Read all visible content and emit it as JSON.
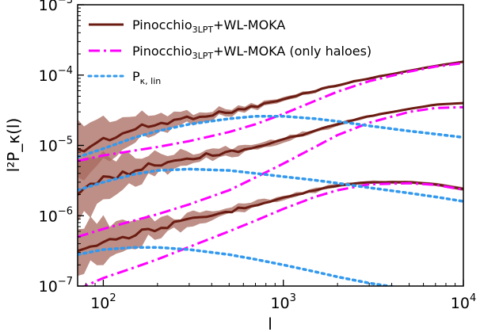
{
  "chart_data": {
    "type": "line",
    "xlabel": "l",
    "ylabel": "l²P_κ(l)",
    "xscale": "log",
    "yscale": "log",
    "xlim": [
      72,
      10000
    ],
    "ylim": [
      1e-07,
      0.001
    ],
    "grid": false,
    "legend_position": "top-left",
    "x_ticks": [
      {
        "base": "10",
        "exp": "2",
        "value": 100
      },
      {
        "base": "10",
        "exp": "3",
        "value": 1000
      },
      {
        "base": "10",
        "exp": "4",
        "value": 10000
      }
    ],
    "y_ticks": [
      {
        "base": "10",
        "exp": "−7",
        "value": 1e-07
      },
      {
        "base": "10",
        "exp": "−6",
        "value": 1e-06
      },
      {
        "base": "10",
        "exp": "−5",
        "value": 1e-05
      },
      {
        "base": "10",
        "exp": "−4",
        "value": 0.0001
      },
      {
        "base": "10",
        "exp": "−3",
        "value": 0.001
      }
    ],
    "legend": [
      {
        "main": "Pinocchio",
        "sub": "3LPT",
        "rest": "+WL-MOKA",
        "style": "solid",
        "color": "#6b1c12"
      },
      {
        "main": "Pinocchio",
        "sub": "3LPT",
        "rest": "+WL-MOKA (only haloes)",
        "style": "dashdot",
        "color": "#ff00ff"
      },
      {
        "main": "P",
        "sub": "κ, lin",
        "rest": "",
        "style": "dotted",
        "color": "#3399ee"
      }
    ],
    "colors": {
      "full": "#6b1c12",
      "band": "#a86a5e",
      "haloes": "#ff00ff",
      "linear": "#3399ee"
    },
    "series": [
      {
        "group": "full",
        "x": [
          72,
          100,
          150,
          200,
          300,
          500,
          700,
          1000,
          1500,
          2000,
          3000,
          5000,
          7000,
          10000
        ],
        "values": [
          8e-06,
          1.2e-05,
          1.7e-05,
          2e-05,
          2.5e-05,
          3e-05,
          3.6e-05,
          4.5e-05,
          6e-05,
          7.2e-05,
          9e-05,
          0.000115,
          0.000135,
          0.000155
        ],
        "band_lower": [
          3e-06,
          6e-06,
          1.1e-05,
          1.5e-05,
          2.1e-05,
          2.7e-05,
          3.3e-05,
          4.2e-05,
          5.7e-05,
          6.9e-05,
          8.7e-05,
          0.000112,
          0.000132,
          0.000152
        ],
        "band_upper": [
          2e-05,
          2.4e-05,
          2.6e-05,
          2.8e-05,
          3e-05,
          3.4e-05,
          3.9e-05,
          4.8e-05,
          6.3e-05,
          7.5e-05,
          9.3e-05,
          0.000118,
          0.000138,
          0.000158
        ]
      },
      {
        "group": "full",
        "x": [
          72,
          100,
          150,
          200,
          300,
          500,
          700,
          1000,
          1500,
          2000,
          3000,
          5000,
          7000,
          10000
        ],
        "values": [
          2.2e-06,
          3.2e-06,
          4.5e-06,
          5.5e-06,
          6.7e-06,
          8e-06,
          9.5e-06,
          1.2e-05,
          1.6e-05,
          2e-05,
          2.6e-05,
          3.3e-05,
          3.8e-05,
          4e-05
        ],
        "band_lower": [
          8e-07,
          1.6e-06,
          3e-06,
          4e-06,
          5.4e-06,
          7e-06,
          8.6e-06,
          1.1e-05,
          1.5e-05,
          1.9e-05,
          2.5e-05,
          3.2e-05,
          3.7e-05,
          3.9e-05
        ],
        "band_upper": [
          6e-06,
          7e-06,
          7.2e-06,
          7.5e-06,
          8.2e-06,
          9.2e-06,
          1.05e-05,
          1.3e-05,
          1.7e-05,
          2.1e-05,
          2.7e-05,
          3.4e-05,
          3.9e-05,
          4.1e-05
        ]
      },
      {
        "group": "full",
        "x": [
          72,
          100,
          150,
          200,
          300,
          500,
          700,
          1000,
          1500,
          2000,
          3000,
          5000,
          7000,
          10000
        ],
        "values": [
          3.5e-07,
          4.3e-07,
          5.5e-07,
          6.7e-07,
          8.5e-07,
          1.15e-06,
          1.45e-06,
          1.8e-06,
          2.3e-06,
          2.7e-06,
          3e-06,
          3e-06,
          2.8e-06,
          2.4e-06
        ],
        "band_lower": [
          1.5e-07,
          2.4e-07,
          3.9e-07,
          5.2e-07,
          7.2e-07,
          1.02e-06,
          1.32e-06,
          1.65e-06,
          2.15e-06,
          2.55e-06,
          2.85e-06,
          2.85e-06,
          2.65e-06,
          2.25e-06
        ],
        "band_upper": [
          8e-07,
          8.5e-07,
          8.5e-07,
          9e-07,
          1.05e-06,
          1.32e-06,
          1.6e-06,
          1.95e-06,
          2.45e-06,
          2.85e-06,
          3.15e-06,
          3.15e-06,
          2.95e-06,
          2.55e-06
        ]
      },
      {
        "group": "haloes",
        "x": [
          72,
          100,
          200,
          300,
          500,
          700,
          1000,
          1500,
          2000,
          3000,
          5000,
          7000,
          10000
        ],
        "values": [
          6e-06,
          7.2e-06,
          9.5e-06,
          1.15e-05,
          1.55e-05,
          2e-05,
          2.8e-05,
          4.3e-05,
          5.8e-05,
          8.2e-05,
          0.000112,
          0.000132,
          0.000148
        ]
      },
      {
        "group": "haloes",
        "x": [
          72,
          100,
          200,
          300,
          500,
          700,
          1000,
          1500,
          2000,
          3000,
          5000,
          7000,
          10000
        ],
        "values": [
          5e-07,
          6.5e-07,
          1.05e-06,
          1.45e-06,
          2.3e-06,
          3.5e-06,
          5.5e-06,
          9.5e-06,
          1.4e-05,
          2.1e-05,
          3e-05,
          3.4e-05,
          3.5e-05
        ]
      },
      {
        "group": "haloes",
        "x": [
          72,
          100,
          150,
          200,
          300,
          500,
          700,
          1000,
          1500,
          2000,
          3000,
          5000,
          7000,
          10000
        ],
        "values": [
          9e-08,
          1.3e-07,
          1.85e-07,
          2.4e-07,
          3.6e-07,
          6e-07,
          8.5e-07,
          1.25e-06,
          1.85e-06,
          2.3e-06,
          2.8e-06,
          2.9e-06,
          2.75e-06,
          2.35e-06
        ]
      },
      {
        "group": "linear",
        "x": [
          72,
          100,
          150,
          200,
          300,
          500,
          700,
          1000,
          1500,
          2000,
          3000,
          5000,
          7000,
          10000
        ],
        "values": [
          6.8e-06,
          9e-06,
          1.3e-05,
          1.6e-05,
          2e-05,
          2.4e-05,
          2.6e-05,
          2.6e-05,
          2.4e-05,
          2.2e-05,
          1.9e-05,
          1.6e-05,
          1.45e-05,
          1.3e-05
        ]
      },
      {
        "group": "linear",
        "x": [
          72,
          100,
          150,
          200,
          300,
          500,
          700,
          1000,
          1500,
          2000,
          3000,
          5000,
          7000,
          10000
        ],
        "values": [
          2.3e-06,
          3e-06,
          3.9e-06,
          4.4e-06,
          4.6e-06,
          4.4e-06,
          4e-06,
          3.6e-06,
          3.2e-06,
          2.9e-06,
          2.5e-06,
          2.1e-06,
          1.85e-06,
          1.6e-06
        ]
      },
      {
        "group": "linear",
        "x": [
          72,
          100,
          150,
          200,
          300,
          500,
          700,
          1000,
          1500,
          2000,
          3000,
          5000,
          7000
        ],
        "values": [
          2.8e-07,
          3.3e-07,
          3.55e-07,
          3.55e-07,
          3.3e-07,
          2.8e-07,
          2.4e-07,
          2e-07,
          1.6e-07,
          1.35e-07,
          1.1e-07,
          9e-08,
          7.5e-08
        ]
      }
    ]
  }
}
